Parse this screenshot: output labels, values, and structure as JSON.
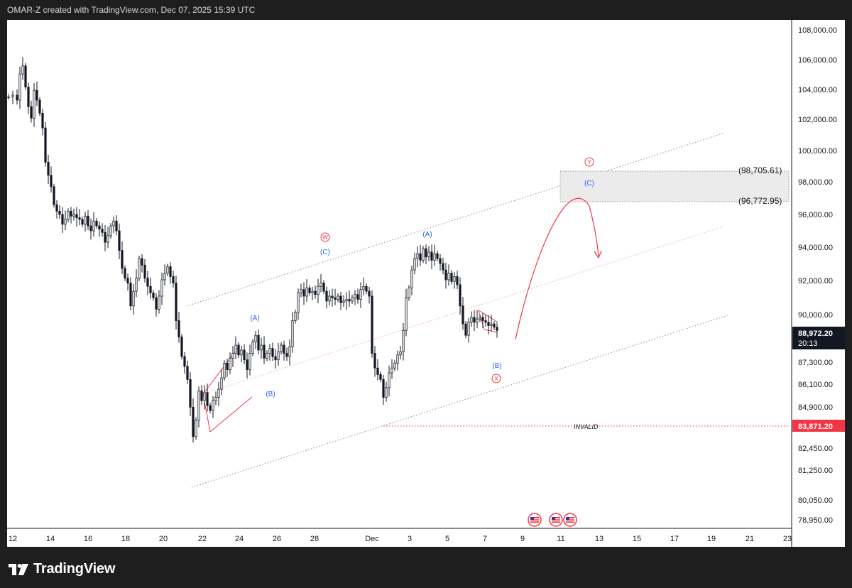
{
  "header": {
    "caption": "OMAR-Z created with TradingView.com, Dec 07, 2025 15:39 UTC"
  },
  "brand": {
    "name": "TradingView"
  },
  "chart_data": {
    "type": "candlestick",
    "price_axis": {
      "labels": [
        "108,000.00",
        "106,000.00",
        "104,000.00",
        "102,000.00",
        "100,000.00",
        "98,000.00",
        "96,000.00",
        "94,000.00",
        "92,000.00",
        "90,000.00",
        "87,300.00",
        "86,100.00",
        "84,900.00",
        "82,450.00",
        "81,250.00",
        "80,050.00",
        "78,950.00"
      ],
      "current_price": "88,972.20",
      "countdown": "20:13",
      "invalid_price": "83,871.20",
      "current_color": "#131722",
      "invalid_color": "#f23645"
    },
    "time_axis": [
      "12",
      "14",
      "16",
      "18",
      "20",
      "22",
      "24",
      "26",
      "28",
      "Dec",
      "3",
      "5",
      "7",
      "9",
      "11",
      "13",
      "15",
      "17",
      "19",
      "21",
      "23"
    ],
    "target_zone": {
      "upper_label": "(98,705.61)",
      "lower_label": "(96,772.95)",
      "upper": 98705.61,
      "lower": 96772.95
    },
    "wave_labels": {
      "w": "W",
      "c1": "(C)",
      "a1": "(A)",
      "b1": "(B)",
      "a2": "(A)",
      "b2": "(B)",
      "x": "X",
      "y": "Y",
      "c2": "(C)"
    },
    "invalid_text": "INVALID",
    "colors": {
      "up": "#131722",
      "down": "#131722",
      "wave_red": "#f23645",
      "wave_blue": "#2962ff"
    }
  }
}
